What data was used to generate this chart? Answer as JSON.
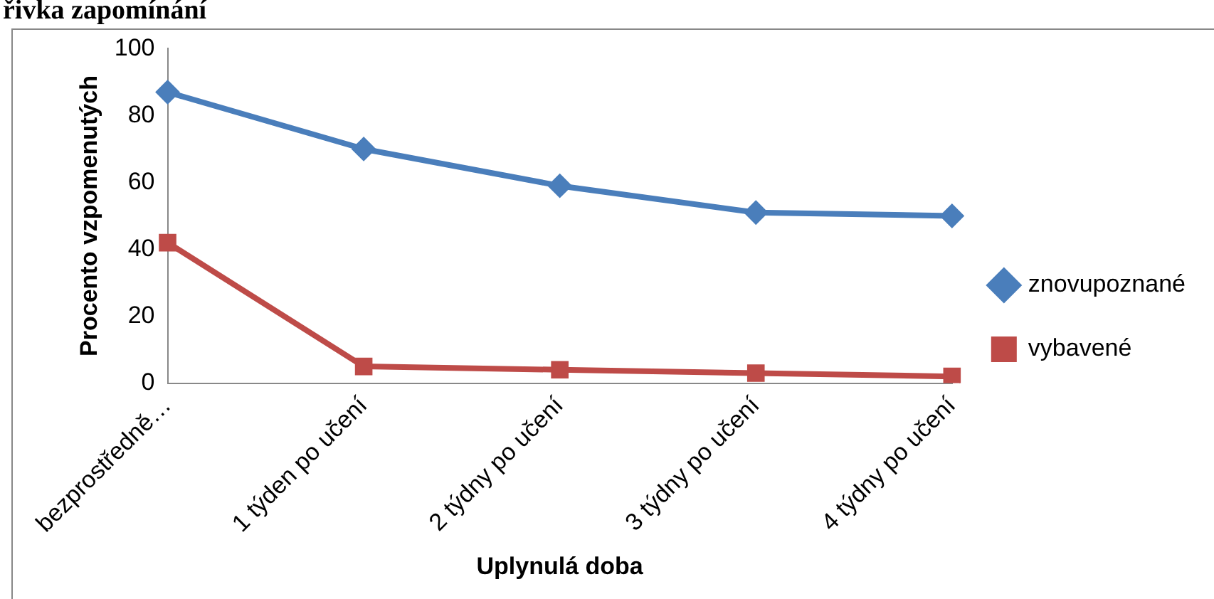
{
  "chart_data": {
    "type": "line",
    "title": "řivka zapomínání",
    "xlabel": "Uplynulá doba",
    "ylabel": "Procento vzpomenutých",
    "categories": [
      "bezprostředně…",
      "1 týden po učení",
      "2 týdny po učení",
      "3 týdny po učení",
      "4 týdny po učení"
    ],
    "series": [
      {
        "name": "znovupoznané",
        "color": "#4a7ebb",
        "values": [
          87,
          70,
          59,
          51,
          50
        ],
        "marker": "diamond"
      },
      {
        "name": "vybavené",
        "color": "#be4b48",
        "values": [
          42,
          5,
          4,
          3,
          2
        ],
        "marker": "square"
      }
    ],
    "ylim": [
      0,
      100
    ],
    "yticks": [
      0,
      20,
      40,
      60,
      80,
      100
    ],
    "grid": false,
    "legend": "right"
  }
}
